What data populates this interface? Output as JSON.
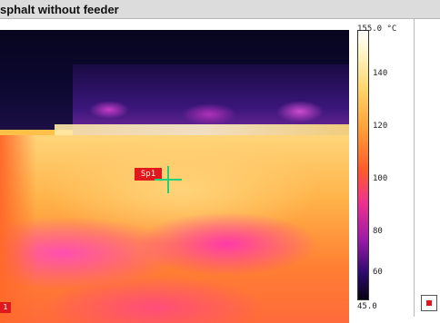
{
  "window": {
    "title": "sphalt without feeder"
  },
  "thermal_image": {
    "spot_marker_label": "Sp1",
    "corner_marker_label": "1"
  },
  "color_scale": {
    "max_label": "155.0 °C",
    "min_label": "45.0",
    "ticks": [
      "140",
      "120",
      "100",
      "80",
      "60"
    ],
    "palette": [
      "#ffffff",
      "#ffd46a",
      "#ff5a2a",
      "#f0308f",
      "#2e0a6e",
      "#05030f"
    ]
  },
  "legend": {
    "swatch_color": "#e0181e"
  }
}
